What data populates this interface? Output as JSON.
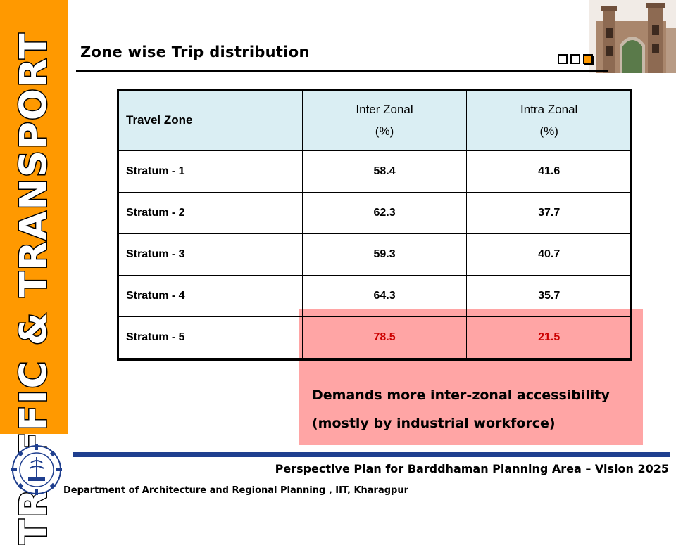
{
  "sidebar": {
    "text": "TRAFFIC & TRANSPORT"
  },
  "slide": {
    "title": "Zone wise Trip  distribution"
  },
  "table": {
    "headers": [
      {
        "line1": "Travel  Zone",
        "line2": ""
      },
      {
        "line1": "Inter Zonal",
        "line2": "(%)"
      },
      {
        "line1": "Intra Zonal",
        "line2": "(%)"
      }
    ],
    "rows": [
      {
        "zone": "Stratum - 1",
        "inter": "58.4",
        "intra": "41.6"
      },
      {
        "zone": "Stratum - 2",
        "inter": "62.3",
        "intra": "37.7"
      },
      {
        "zone": "Stratum - 3",
        "inter": "59.3",
        "intra": "40.7"
      },
      {
        "zone": "Stratum - 4",
        "inter": "64.3",
        "intra": "35.7"
      },
      {
        "zone": "Stratum - 5",
        "inter": "78.5",
        "intra": "21.5"
      }
    ]
  },
  "callout": {
    "line1": "Demands  more inter-zonal accessibility",
    "line2": "(mostly by industrial workforce)"
  },
  "footer": {
    "title": "Perspective  Plan for Barddhaman Planning Area – Vision 2025",
    "department": "Department of Architecture and Regional Planning , IIT, Kharagpur"
  },
  "colors": {
    "sidebar": "#ff9900",
    "header_fill": "#daeef3",
    "highlight": "#ffa5a5",
    "highlight_text": "#cc0000",
    "footer_rule": "#1f3f8f"
  },
  "icons": {
    "logo": "iit-kharagpur-emblem-icon",
    "building": "heritage-gate-icon"
  }
}
